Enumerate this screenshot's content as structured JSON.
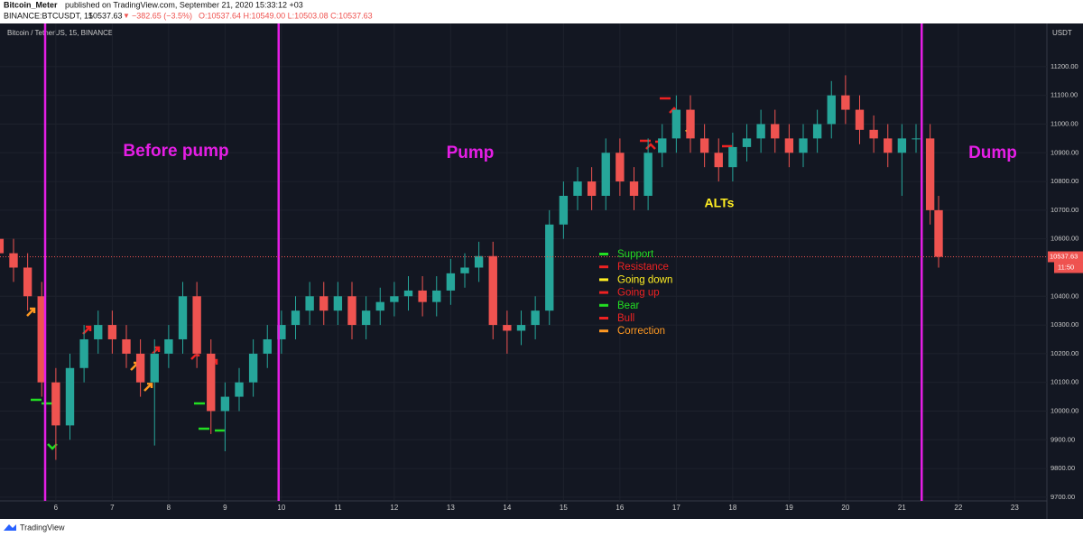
{
  "header": {
    "author": "Bitcoin_Meter",
    "published": "published on TradingView.com, September 21, 2020 15:33:12 +03",
    "symbol": "BINANCE:BTCUSDT, 15",
    "price": "10537.63",
    "arrow": "▼",
    "change": "−382.65 (−3.5%)",
    "ohlc": "O:10537.64 H:10549.00 L:10503.08 C:10537.63"
  },
  "chart_data": {
    "type": "candlestick",
    "title": "Bitcoin / TetherUS, 15, BINANCE",
    "y_unit": "USDT",
    "x": [
      5,
      5.25,
      5.5,
      5.75,
      6,
      6.25,
      6.5,
      6.75,
      7,
      7.25,
      7.5,
      7.75,
      8,
      8.25,
      8.5,
      8.75,
      9,
      9.25,
      9.5,
      9.75,
      10,
      10.25,
      10.5,
      10.75,
      11,
      11.25,
      11.5,
      11.75,
      12,
      12.25,
      12.5,
      12.75,
      13,
      13.25,
      13.5,
      13.75,
      14,
      14.25,
      14.5,
      14.75,
      15,
      15.25,
      15.5,
      15.75,
      16,
      16.25,
      16.5,
      16.75,
      17,
      17.25,
      17.5,
      17.75,
      18,
      18.25,
      18.5,
      18.75,
      19,
      19.25,
      19.5,
      19.75,
      20,
      20.25,
      20.5,
      20.75,
      21,
      21.25,
      21.5,
      21.65
    ],
    "open": [
      10600,
      10550,
      10500,
      10400,
      10100,
      9950,
      10150,
      10250,
      10300,
      10250,
      10200,
      10100,
      10200,
      10250,
      10400,
      10200,
      10000,
      10050,
      10100,
      10200,
      10250,
      10300,
      10350,
      10400,
      10350,
      10400,
      10300,
      10350,
      10380,
      10400,
      10420,
      10380,
      10420,
      10480,
      10500,
      10540,
      10300,
      10280,
      10300,
      10350,
      10650,
      10750,
      10800,
      10750,
      10900,
      10800,
      10750,
      10900,
      10950,
      11050,
      10950,
      10900,
      10850,
      10920,
      10950,
      11000,
      10950,
      10900,
      10950,
      11000,
      11100,
      11050,
      10980,
      10950,
      10900,
      10950,
      10950,
      10700
    ],
    "high": [
      10650,
      10600,
      10550,
      10450,
      10150,
      10200,
      10300,
      10350,
      10350,
      10300,
      10250,
      10250,
      10300,
      10450,
      10450,
      10250,
      10100,
      10150,
      10250,
      10300,
      10350,
      10400,
      10450,
      10450,
      10450,
      10450,
      10400,
      10430,
      10450,
      10470,
      10470,
      10470,
      10530,
      10550,
      10590,
      10590,
      10350,
      10350,
      10400,
      10700,
      10800,
      10850,
      10850,
      10950,
      10950,
      10850,
      10950,
      11000,
      11100,
      11100,
      11000,
      10950,
      10970,
      11000,
      11050,
      11050,
      11000,
      11000,
      11050,
      11150,
      11170,
      11100,
      11030,
      11000,
      11000,
      11000,
      11000,
      10750
    ],
    "low": [
      10500,
      10450,
      10350,
      10050,
      9830,
      9900,
      10100,
      10200,
      10200,
      10150,
      10050,
      9880,
      10150,
      10200,
      10150,
      9920,
      9860,
      10000,
      10050,
      10150,
      10200,
      10250,
      10300,
      10300,
      10300,
      10250,
      10250,
      10300,
      10330,
      10350,
      10330,
      10330,
      10370,
      10430,
      10450,
      10250,
      10200,
      10230,
      10250,
      10300,
      10600,
      10700,
      10700,
      10700,
      10750,
      10700,
      10700,
      10850,
      10900,
      10900,
      10850,
      10800,
      10800,
      10870,
      10900,
      10900,
      10850,
      10850,
      10900,
      10950,
      11000,
      10930,
      10900,
      10850,
      10750,
      10900,
      10650,
      10500
    ],
    "close": [
      10550,
      10500,
      10400,
      10100,
      9950,
      10150,
      10250,
      10300,
      10250,
      10200,
      10100,
      10200,
      10250,
      10400,
      10200,
      10000,
      10050,
      10100,
      10200,
      10250,
      10300,
      10350,
      10400,
      10350,
      10400,
      10300,
      10350,
      10380,
      10400,
      10420,
      10380,
      10420,
      10480,
      10500,
      10540,
      10300,
      10280,
      10300,
      10350,
      10650,
      10750,
      10800,
      10750,
      10900,
      10800,
      10750,
      10900,
      10950,
      11050,
      10950,
      10900,
      10850,
      10920,
      10950,
      11000,
      10950,
      10900,
      10950,
      11000,
      11100,
      11050,
      10980,
      10950,
      10900,
      10950,
      10950,
      10700,
      10537.63
    ],
    "up_color": "#26a69a",
    "down_color": "#ef5350",
    "xlim": [
      5.01,
      23.57
    ],
    "xticks": [
      6,
      7,
      8,
      9,
      10,
      11,
      12,
      13,
      14,
      15,
      16,
      17,
      18,
      19,
      20,
      21,
      22,
      23
    ],
    "ylim": [
      9687,
      11338
    ],
    "yticks": [
      {
        "value": 9700,
        "label": "9700.00"
      },
      {
        "value": 9800,
        "label": "9800.00"
      },
      {
        "value": 9900,
        "label": "9900.00"
      },
      {
        "value": 10000,
        "label": "10000.00"
      },
      {
        "value": 10100,
        "label": "10100.00"
      },
      {
        "value": 10200,
        "label": "10200.00"
      },
      {
        "value": 10300,
        "label": "10300.00"
      },
      {
        "value": 10400,
        "label": "10400.00"
      },
      {
        "value": 10600,
        "label": "10600.00"
      },
      {
        "value": 10700,
        "label": "10700.00"
      },
      {
        "value": 10800,
        "label": "10800.00"
      },
      {
        "value": 10900,
        "label": "10900.00"
      },
      {
        "value": 11000,
        "label": "11000.00"
      },
      {
        "value": 11100,
        "label": "11100.00"
      },
      {
        "value": 11200,
        "label": "11200.00"
      }
    ],
    "last_price": 10537.63,
    "countdown": "11:50",
    "vlines": [
      5.81,
      9.95,
      21.35
    ],
    "vline_color": "#e51ee5",
    "annotations": [
      "Before pump",
      "Pump",
      "Dump",
      "ALTs"
    ],
    "legend": [
      "Support",
      "Resistance",
      "Going down",
      "Going up",
      "Bear",
      "Bull",
      "Correction"
    ],
    "legend_colors": [
      "#22dd22",
      "#ee2222",
      "#ffee22",
      "#ee2222",
      "#22dd22",
      "#ee2222",
      "#ff9922"
    ]
  },
  "footer": "TradingView"
}
